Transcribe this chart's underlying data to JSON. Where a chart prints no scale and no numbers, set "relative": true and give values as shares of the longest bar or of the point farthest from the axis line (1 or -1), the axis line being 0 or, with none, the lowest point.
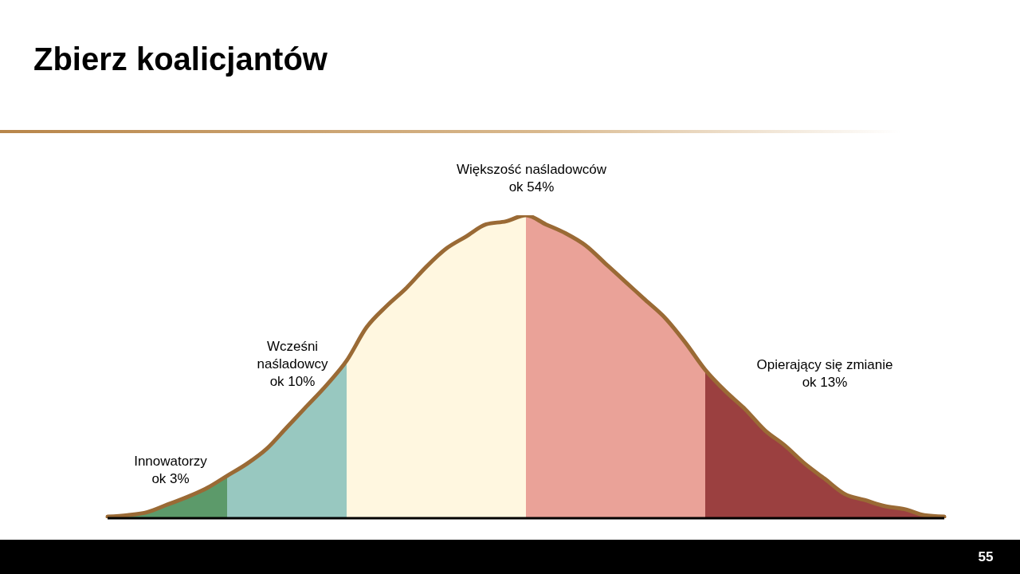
{
  "chart_data": {
    "type": "area",
    "title": "Zbierz koalicjantów",
    "relative": true,
    "grid": false,
    "legend": false,
    "categories": [
      null,
      null,
      null,
      null,
      null,
      null,
      null,
      null,
      null,
      null,
      null,
      null,
      null,
      null,
      null,
      null,
      null,
      null,
      null,
      null,
      null,
      null,
      null,
      null,
      null,
      null,
      null,
      null,
      null,
      null,
      null,
      null,
      null,
      null,
      null,
      null,
      null,
      null,
      null,
      null,
      null,
      null,
      null
    ],
    "series": [
      {
        "type": "area",
        "color": "#5c9a6a",
        "values": [
          0.005,
          0.01,
          0.02,
          0.045,
          0.07,
          0.1,
          0.14,
          null,
          null,
          null,
          null,
          null,
          null,
          null,
          null,
          null,
          null,
          null,
          null,
          null,
          null,
          null,
          null,
          null,
          null,
          null,
          null,
          null,
          null,
          null,
          null,
          null,
          null,
          null,
          null,
          null,
          null,
          null,
          null,
          null,
          null,
          null,
          null
        ]
      },
      {
        "type": "area",
        "color": "#98c8c0",
        "values": [
          null,
          null,
          null,
          null,
          null,
          null,
          0.14,
          0.18,
          0.23,
          0.3,
          0.37,
          0.44,
          0.52,
          null,
          null,
          null,
          null,
          null,
          null,
          null,
          null,
          null,
          null,
          null,
          null,
          null,
          null,
          null,
          null,
          null,
          null,
          null,
          null,
          null,
          null,
          null,
          null,
          null,
          null,
          null,
          null,
          null,
          null
        ]
      },
      {
        "type": "area",
        "color": "#fff7e0",
        "values": [
          null,
          null,
          null,
          null,
          null,
          null,
          null,
          null,
          null,
          null,
          null,
          null,
          0.52,
          0.63,
          0.7,
          0.76,
          0.83,
          0.89,
          0.93,
          0.97,
          0.98,
          1,
          null,
          null,
          null,
          null,
          null,
          null,
          null,
          null,
          null,
          null,
          null,
          null,
          null,
          null,
          null,
          null,
          null,
          null,
          null,
          null,
          null
        ]
      },
      {
        "type": "area",
        "color": "#eaa298",
        "values": [
          null,
          null,
          null,
          null,
          null,
          null,
          null,
          null,
          null,
          null,
          null,
          null,
          null,
          null,
          null,
          null,
          null,
          null,
          null,
          null,
          null,
          1,
          0.97,
          0.94,
          0.9,
          0.84,
          0.78,
          0.72,
          0.66,
          0.58,
          0.49,
          null,
          null,
          null,
          null,
          null,
          null,
          null,
          null,
          null,
          null,
          null,
          null
        ]
      },
      {
        "type": "area",
        "color": "#9b4040",
        "values": [
          null,
          null,
          null,
          null,
          null,
          null,
          null,
          null,
          null,
          null,
          null,
          null,
          null,
          null,
          null,
          null,
          null,
          null,
          null,
          null,
          null,
          null,
          null,
          null,
          null,
          null,
          null,
          null,
          null,
          null,
          0.49,
          0.42,
          0.36,
          0.29,
          0.24,
          0.18,
          0.13,
          0.08,
          0.06,
          0.04,
          0.03,
          0.01,
          0.005
        ]
      },
      {
        "type": "line",
        "color": "#9a6a35",
        "values": [
          0.005,
          0.01,
          0.02,
          0.045,
          0.07,
          0.1,
          0.14,
          0.18,
          0.23,
          0.3,
          0.37,
          0.44,
          0.52,
          0.63,
          0.7,
          0.76,
          0.83,
          0.89,
          0.93,
          0.97,
          0.98,
          1,
          0.97,
          0.94,
          0.9,
          0.84,
          0.78,
          0.72,
          0.66,
          0.58,
          0.49,
          0.42,
          0.36,
          0.29,
          0.24,
          0.18,
          0.13,
          0.08,
          0.06,
          0.04,
          0.03,
          0.01,
          0.005
        ]
      }
    ],
    "annotations": [
      "Innowatorzy\nok 3%",
      "Wcześni\nnaśladowcy\nok 10%",
      "Większość naśladowców\nok 54%",
      "Opierający się zmianie\nok 13%",
      "55"
    ]
  }
}
